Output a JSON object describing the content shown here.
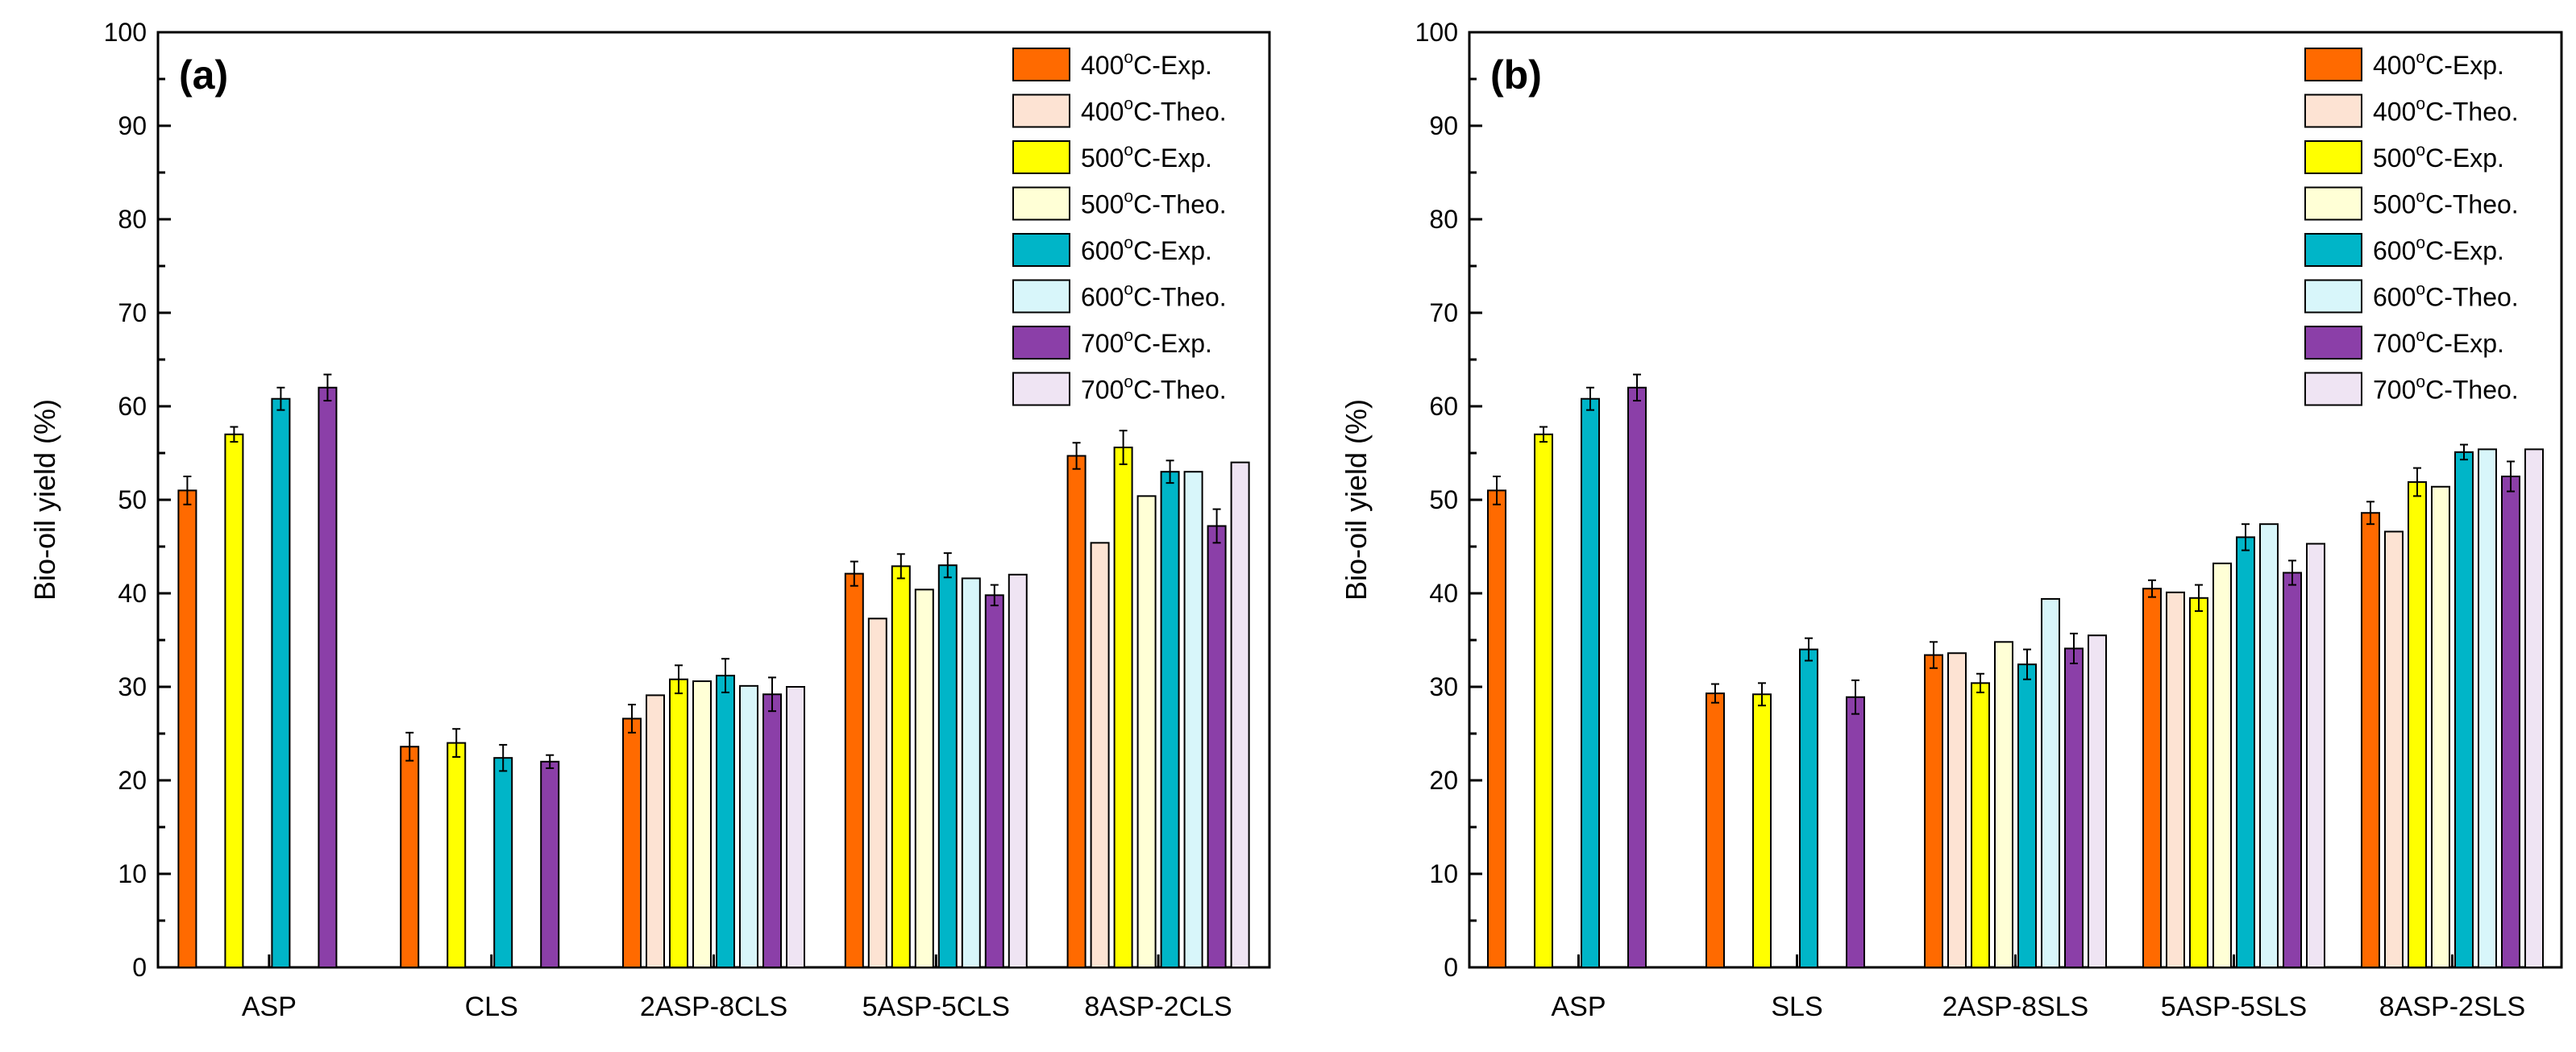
{
  "chart_data": [
    {
      "type": "bar",
      "panel_label": "(a)",
      "ylabel": "Bio-oil yield (%)",
      "xlabel": "",
      "ylim": [
        0,
        100
      ],
      "yticks": [
        0,
        10,
        20,
        30,
        40,
        50,
        60,
        70,
        80,
        90,
        100
      ],
      "grid": false,
      "legend_position": "top-right",
      "categories": [
        "ASP",
        "CLS",
        "2ASP-8CLS",
        "5ASP-5CLS",
        "8ASP-2CLS"
      ],
      "series": [
        {
          "name": "400°C-Exp.",
          "temp": "400",
          "suffix": "C-Exp.",
          "color": "#FF6A00",
          "values": [
            51.0,
            23.6,
            26.6,
            42.1,
            54.7
          ],
          "errors": [
            1.5,
            1.5,
            1.5,
            1.3,
            1.4
          ]
        },
        {
          "name": "400°C-Theo.",
          "temp": "400",
          "suffix": "C-Theo.",
          "color": "#FDE3D3",
          "values": [
            null,
            null,
            29.1,
            37.3,
            45.4
          ],
          "errors": [
            null,
            null,
            null,
            null,
            null
          ]
        },
        {
          "name": "500°C-Exp.",
          "temp": "500",
          "suffix": "C-Exp.",
          "color": "#FFFF00",
          "values": [
            57.0,
            24.0,
            30.8,
            42.9,
            55.6
          ],
          "errors": [
            0.8,
            1.5,
            1.5,
            1.3,
            1.8
          ]
        },
        {
          "name": "500°C-Theo.",
          "temp": "500",
          "suffix": "C-Theo.",
          "color": "#FFFFD6",
          "values": [
            null,
            null,
            30.6,
            40.4,
            50.4
          ],
          "errors": [
            null,
            null,
            null,
            null,
            null
          ]
        },
        {
          "name": "600°C-Exp.",
          "temp": "600",
          "suffix": "C-Exp.",
          "color": "#00B5C8",
          "values": [
            60.8,
            22.4,
            31.2,
            43.0,
            53.0
          ],
          "errors": [
            1.2,
            1.4,
            1.8,
            1.3,
            1.2
          ]
        },
        {
          "name": "600°C-Theo.",
          "temp": "600",
          "suffix": "C-Theo.",
          "color": "#D8F6FA",
          "values": [
            null,
            null,
            30.1,
            41.6,
            53.0
          ],
          "errors": [
            null,
            null,
            null,
            null,
            null
          ]
        },
        {
          "name": "700°C-Exp.",
          "temp": "700",
          "suffix": "C-Exp.",
          "color": "#8B3FA8",
          "values": [
            62.0,
            22.0,
            29.2,
            39.8,
            47.2
          ],
          "errors": [
            1.4,
            0.7,
            1.8,
            1.1,
            1.8
          ]
        },
        {
          "name": "700°C-Theo.",
          "temp": "700",
          "suffix": "C-Theo.",
          "color": "#EFE4F3",
          "values": [
            null,
            null,
            30.0,
            42.0,
            54.0
          ],
          "errors": [
            null,
            null,
            null,
            null,
            null
          ]
        }
      ]
    },
    {
      "type": "bar",
      "panel_label": "(b)",
      "ylabel": "Bio-oil yield (%)",
      "xlabel": "",
      "ylim": [
        0,
        100
      ],
      "yticks": [
        0,
        10,
        20,
        30,
        40,
        50,
        60,
        70,
        80,
        90,
        100
      ],
      "grid": false,
      "legend_position": "top-right",
      "categories": [
        "ASP",
        "SLS",
        "2ASP-8SLS",
        "5ASP-5SLS",
        "8ASP-2SLS"
      ],
      "series": [
        {
          "name": "400°C-Exp.",
          "temp": "400",
          "suffix": "C-Exp.",
          "color": "#FF6A00",
          "values": [
            51.0,
            29.3,
            33.4,
            40.5,
            48.6
          ],
          "errors": [
            1.5,
            1.0,
            1.4,
            0.9,
            1.2
          ]
        },
        {
          "name": "400°C-Theo.",
          "temp": "400",
          "suffix": "C-Theo.",
          "color": "#FDE3D3",
          "values": [
            null,
            null,
            33.6,
            40.1,
            46.6
          ],
          "errors": [
            null,
            null,
            null,
            null,
            null
          ]
        },
        {
          "name": "500°C-Exp.",
          "temp": "500",
          "suffix": "C-Exp.",
          "color": "#FFFF00",
          "values": [
            57.0,
            29.2,
            30.4,
            39.5,
            51.9
          ],
          "errors": [
            0.8,
            1.2,
            1.0,
            1.4,
            1.5
          ]
        },
        {
          "name": "500°C-Theo.",
          "temp": "500",
          "suffix": "C-Theo.",
          "color": "#FFFFD6",
          "values": [
            null,
            null,
            34.8,
            43.2,
            51.4
          ],
          "errors": [
            null,
            null,
            null,
            null,
            null
          ]
        },
        {
          "name": "600°C-Exp.",
          "temp": "600",
          "suffix": "C-Exp.",
          "color": "#00B5C8",
          "values": [
            60.8,
            34.0,
            32.4,
            46.0,
            55.1
          ],
          "errors": [
            1.2,
            1.2,
            1.6,
            1.4,
            0.8
          ]
        },
        {
          "name": "600°C-Theo.",
          "temp": "600",
          "suffix": "C-Theo.",
          "color": "#D8F6FA",
          "values": [
            null,
            null,
            39.4,
            47.4,
            55.4
          ],
          "errors": [
            null,
            null,
            null,
            null,
            null
          ]
        },
        {
          "name": "700°C-Exp.",
          "temp": "700",
          "suffix": "C-Exp.",
          "color": "#8B3FA8",
          "values": [
            62.0,
            28.9,
            34.1,
            42.2,
            52.5
          ],
          "errors": [
            1.4,
            1.8,
            1.6,
            1.3,
            1.6
          ]
        },
        {
          "name": "700°C-Theo.",
          "temp": "700",
          "suffix": "C-Theo.",
          "color": "#EFE4F3",
          "values": [
            null,
            null,
            35.5,
            45.3,
            55.4
          ],
          "errors": [
            null,
            null,
            null,
            null,
            null
          ]
        }
      ]
    }
  ]
}
